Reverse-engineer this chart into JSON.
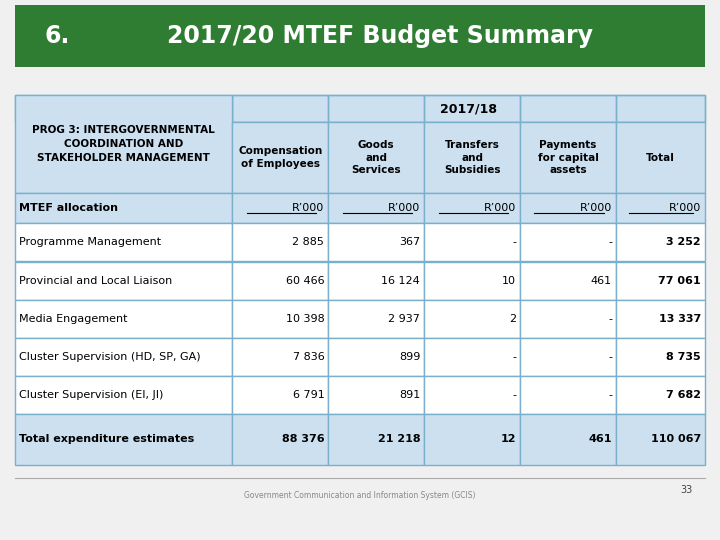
{
  "title_left": "6.",
  "title_right": "2017/20 MTEF Budget Summary",
  "title_bg": "#2e7d32",
  "title_color": "#ffffff",
  "header_year": "2017/18",
  "col0_header_lines": [
    "PROG 3: INTERGOVERNMENTAL",
    "COORDINATION AND",
    "STAKEHOLDER MANAGEMENT"
  ],
  "col_headers": [
    "Compensation\nof Employees",
    "Goods\nand\nServices",
    "Transfers\nand\nSubsidies",
    "Payments\nfor capital\nassets",
    "Total"
  ],
  "unit_row": [
    "MTEF allocation",
    "R’000",
    "R’000",
    "R’000",
    "R’000",
    "R’000"
  ],
  "rows": [
    [
      "Programme Management",
      "2 885",
      "367",
      "-",
      "-",
      "3 252"
    ],
    [
      "Provincial and Local Liaison",
      "60 466",
      "16 124",
      "10",
      "461",
      "77 061"
    ],
    [
      "Media Engagement",
      "10 398",
      "2 937",
      "2",
      "-",
      "13 337"
    ],
    [
      "Cluster Supervision (HD, SP, GA)",
      "7 836",
      "899",
      "-",
      "-",
      "8 735"
    ],
    [
      "Cluster Supervision (EI, JI)",
      "6 791",
      "891",
      "-",
      "-",
      "7 682"
    ]
  ],
  "total_row": [
    "Total expenditure estimates",
    "88 376",
    "21 218",
    "12",
    "461",
    "110 067"
  ],
  "bg_color": "#f0f0f0",
  "table_header_bg": "#cce0f0",
  "unit_row_bg": "#cce0f0",
  "total_row_bg": "#cce0f0",
  "data_row_bg": "#ffffff",
  "border_color": "#7ab0cc",
  "footer_text": "Government Communication and Information System (GCIS)",
  "page_num": "33",
  "footer_color": "#888888",
  "footer_line_color": "#aaaaaa"
}
